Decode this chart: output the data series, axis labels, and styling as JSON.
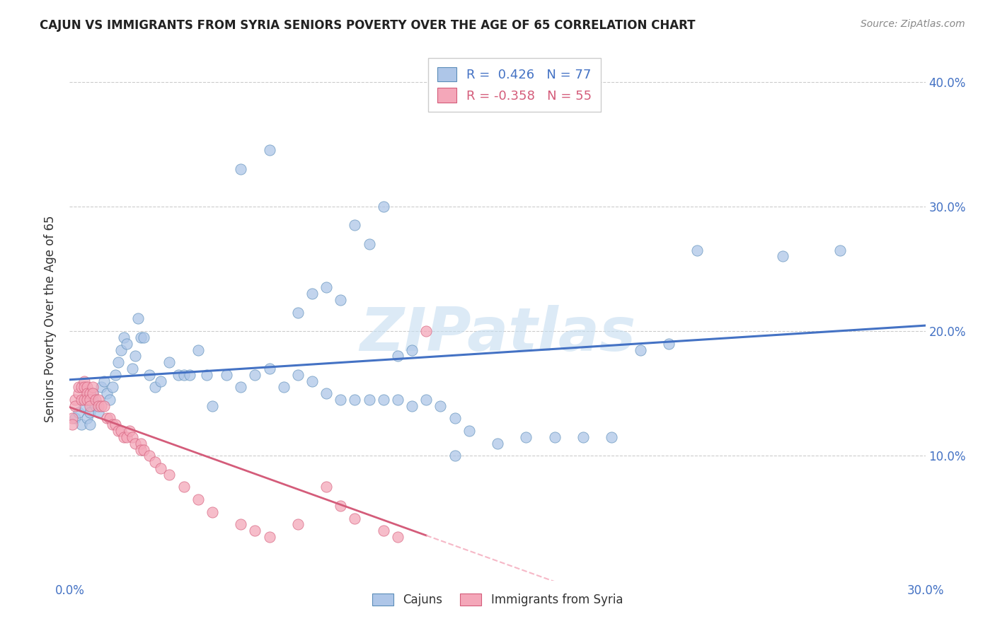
{
  "title": "CAJUN VS IMMIGRANTS FROM SYRIA SENIORS POVERTY OVER THE AGE OF 65 CORRELATION CHART",
  "source": "Source: ZipAtlas.com",
  "ylabel": "Seniors Poverty Over the Age of 65",
  "xlim": [
    0.0,
    0.3
  ],
  "ylim": [
    0.0,
    0.42
  ],
  "xticks": [
    0.0,
    0.05,
    0.1,
    0.15,
    0.2,
    0.25,
    0.3
  ],
  "xtick_labels": [
    "0.0%",
    "",
    "",
    "",
    "",
    "",
    "30.0%"
  ],
  "yticks": [
    0.0,
    0.1,
    0.2,
    0.3,
    0.4
  ],
  "ytick_labels_right": [
    "",
    "10.0%",
    "20.0%",
    "30.0%",
    "40.0%"
  ],
  "cajun_R": 0.426,
  "cajun_N": 77,
  "syria_R": -0.358,
  "syria_N": 55,
  "cajun_color": "#aec6e8",
  "cajun_edge_color": "#5b8db8",
  "syria_color": "#f4a7b9",
  "syria_edge_color": "#d45c7a",
  "cajun_line_color": "#4472c4",
  "syria_line_solid_color": "#d45c7a",
  "syria_line_dash_color": "#f4a7b9",
  "background_color": "#ffffff",
  "watermark": "ZIPatlas",
  "tick_color": "#4472c4",
  "legend_text_cajun_color": "#4472c4",
  "legend_text_syria_color": "#d45c7a",
  "cajun_x": [
    0.002,
    0.003,
    0.004,
    0.005,
    0.006,
    0.006,
    0.007,
    0.007,
    0.008,
    0.008,
    0.009,
    0.01,
    0.011,
    0.012,
    0.013,
    0.014,
    0.015,
    0.016,
    0.017,
    0.018,
    0.019,
    0.02,
    0.022,
    0.023,
    0.024,
    0.025,
    0.026,
    0.028,
    0.03,
    0.032,
    0.035,
    0.038,
    0.04,
    0.042,
    0.045,
    0.048,
    0.05,
    0.055,
    0.06,
    0.065,
    0.07,
    0.075,
    0.08,
    0.085,
    0.09,
    0.095,
    0.1,
    0.105,
    0.11,
    0.115,
    0.12,
    0.125,
    0.13,
    0.135,
    0.14,
    0.15,
    0.16,
    0.17,
    0.18,
    0.19,
    0.2,
    0.21,
    0.22,
    0.11,
    0.06,
    0.07,
    0.08,
    0.085,
    0.09,
    0.095,
    0.1,
    0.105,
    0.115,
    0.12,
    0.25,
    0.27,
    0.135
  ],
  "cajun_y": [
    0.13,
    0.135,
    0.125,
    0.14,
    0.13,
    0.145,
    0.125,
    0.135,
    0.145,
    0.15,
    0.14,
    0.135,
    0.155,
    0.16,
    0.15,
    0.145,
    0.155,
    0.165,
    0.175,
    0.185,
    0.195,
    0.19,
    0.17,
    0.18,
    0.21,
    0.195,
    0.195,
    0.165,
    0.155,
    0.16,
    0.175,
    0.165,
    0.165,
    0.165,
    0.185,
    0.165,
    0.14,
    0.165,
    0.155,
    0.165,
    0.17,
    0.155,
    0.165,
    0.16,
    0.15,
    0.145,
    0.145,
    0.145,
    0.145,
    0.145,
    0.14,
    0.145,
    0.14,
    0.13,
    0.12,
    0.11,
    0.115,
    0.115,
    0.115,
    0.115,
    0.185,
    0.19,
    0.265,
    0.3,
    0.33,
    0.345,
    0.215,
    0.23,
    0.235,
    0.225,
    0.285,
    0.27,
    0.18,
    0.185,
    0.26,
    0.265,
    0.1
  ],
  "syria_x": [
    0.001,
    0.001,
    0.002,
    0.002,
    0.003,
    0.003,
    0.004,
    0.004,
    0.005,
    0.005,
    0.005,
    0.006,
    0.006,
    0.006,
    0.007,
    0.007,
    0.007,
    0.008,
    0.008,
    0.009,
    0.01,
    0.01,
    0.011,
    0.012,
    0.013,
    0.014,
    0.015,
    0.016,
    0.017,
    0.018,
    0.019,
    0.02,
    0.021,
    0.022,
    0.023,
    0.025,
    0.025,
    0.026,
    0.028,
    0.03,
    0.032,
    0.035,
    0.04,
    0.045,
    0.05,
    0.06,
    0.065,
    0.07,
    0.08,
    0.09,
    0.095,
    0.1,
    0.11,
    0.115,
    0.125
  ],
  "syria_y": [
    0.13,
    0.125,
    0.145,
    0.14,
    0.15,
    0.155,
    0.155,
    0.145,
    0.16,
    0.155,
    0.145,
    0.155,
    0.15,
    0.145,
    0.15,
    0.145,
    0.14,
    0.155,
    0.15,
    0.145,
    0.145,
    0.14,
    0.14,
    0.14,
    0.13,
    0.13,
    0.125,
    0.125,
    0.12,
    0.12,
    0.115,
    0.115,
    0.12,
    0.115,
    0.11,
    0.11,
    0.105,
    0.105,
    0.1,
    0.095,
    0.09,
    0.085,
    0.075,
    0.065,
    0.055,
    0.045,
    0.04,
    0.035,
    0.045,
    0.075,
    0.06,
    0.05,
    0.04,
    0.035,
    0.2
  ]
}
